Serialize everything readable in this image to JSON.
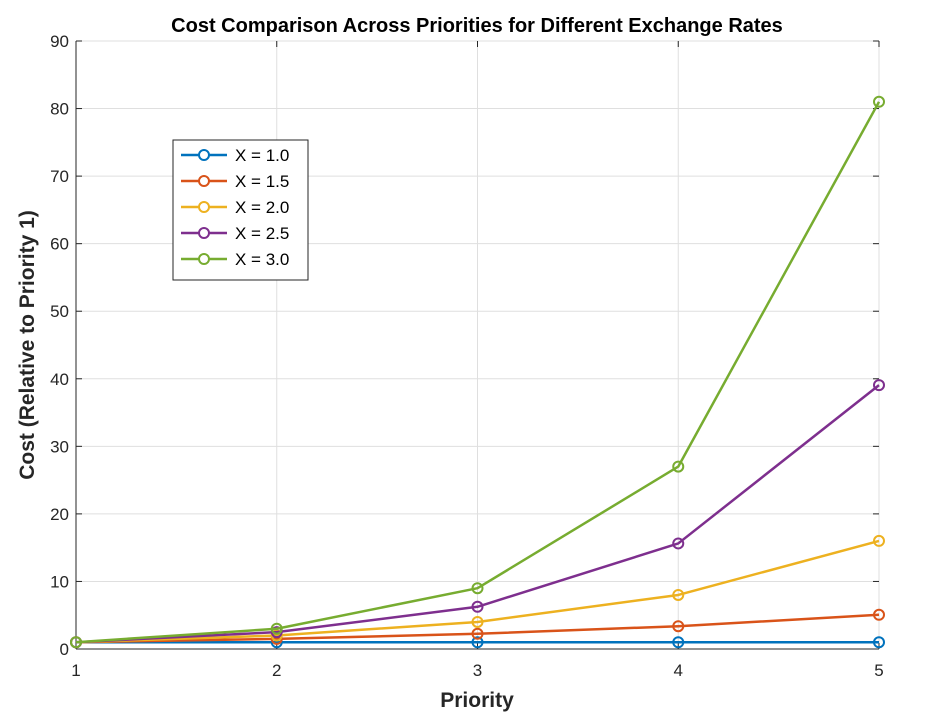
{
  "chart_data": {
    "type": "line",
    "title": "Cost Comparison Across Priorities for Different Exchange Rates",
    "xlabel": "Priority",
    "ylabel": "Cost (Relative to Priority 1)",
    "x": [
      1,
      2,
      3,
      4,
      5
    ],
    "xlim": [
      1,
      5
    ],
    "ylim": [
      0,
      90
    ],
    "xticks": [
      1,
      2,
      3,
      4,
      5
    ],
    "yticks": [
      0,
      10,
      20,
      30,
      40,
      50,
      60,
      70,
      80,
      90
    ],
    "grid": true,
    "legend_position": "upper-left",
    "marker": "circle",
    "series": [
      {
        "name": "X = 1.0",
        "color": "#0072BD",
        "values": [
          1,
          1,
          1,
          1,
          1
        ]
      },
      {
        "name": "X = 1.5",
        "color": "#D95319",
        "values": [
          1,
          1.5,
          2.25,
          3.375,
          5.0625
        ]
      },
      {
        "name": "X = 2.0",
        "color": "#EDB120",
        "values": [
          1,
          2,
          4,
          8,
          16
        ]
      },
      {
        "name": "X = 2.5",
        "color": "#7E2F8E",
        "values": [
          1,
          2.5,
          6.25,
          15.625,
          39.0625
        ]
      },
      {
        "name": "X = 3.0",
        "color": "#77AC30",
        "values": [
          1,
          3,
          9,
          27,
          81
        ]
      }
    ]
  }
}
